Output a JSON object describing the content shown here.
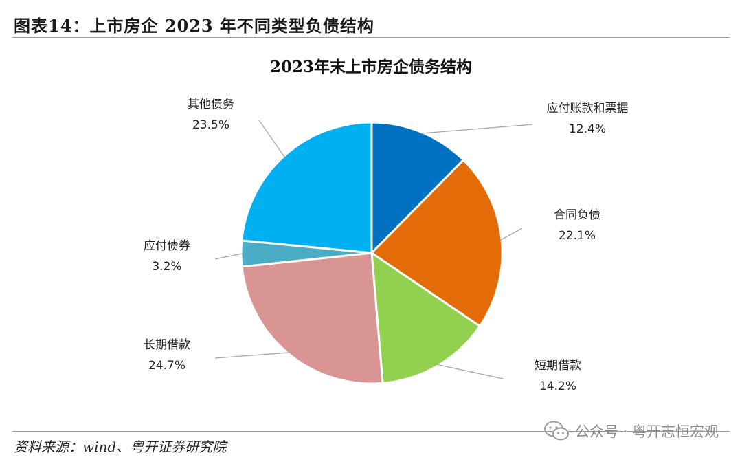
{
  "figure": {
    "title": "图表14：上市房企 2023 年不同类型负债结构",
    "source": "资料来源：wind、粤开证券研究院"
  },
  "watermark": {
    "text": "公众号 · 粤开志恒宏观",
    "icon": "wechat-icon"
  },
  "chart_data": {
    "type": "pie",
    "title": "2023年末上市房企债务结构",
    "slices": [
      {
        "name": "应付账款和票据",
        "value": 12.4,
        "label": "12.4%",
        "color": "#0070C0"
      },
      {
        "name": "合同负债",
        "value": 22.1,
        "label": "22.1%",
        "color": "#E36C09"
      },
      {
        "name": "短期借款",
        "value": 14.2,
        "label": "14.2%",
        "color": "#92D050"
      },
      {
        "name": "长期借款",
        "value": 24.7,
        "label": "24.7%",
        "color": "#D99594"
      },
      {
        "name": "应付债券",
        "value": 3.2,
        "label": "3.2%",
        "color": "#4BACC6"
      },
      {
        "name": "其他债务",
        "value": 23.5,
        "label": "23.5%",
        "color": "#00B0F0"
      }
    ],
    "start_angle": "12 o'clock",
    "direction": "clockwise"
  }
}
